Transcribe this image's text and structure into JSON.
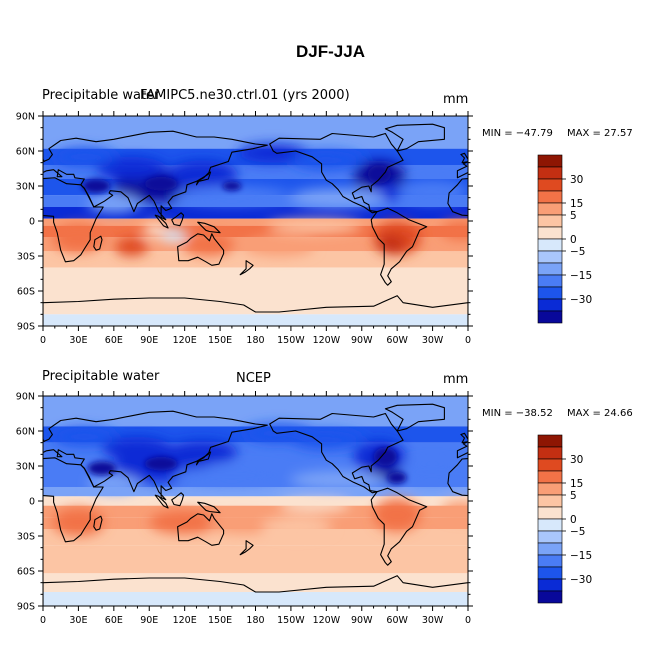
{
  "figure": {
    "title": "DJF-JJA"
  },
  "colors": {
    "levels": [
      "#08089a",
      "#0a2bd6",
      "#1d55ec",
      "#4a7cf5",
      "#7aa3f7",
      "#a9c6fb",
      "#d7e8fb",
      "#fbe2cf",
      "#fcc5a4",
      "#f99e76",
      "#f27247",
      "#df4a20",
      "#c32f12",
      "#8e1603"
    ],
    "ocean_bg": "#f4a585",
    "land_line": "#000000"
  },
  "chart_data": [
    {
      "type": "heatmap",
      "panel_label_left": "Precipitable water",
      "panel_label_center": "FAMIPC5.ne30.ctrl.01 (yrs 2000)",
      "units": "mm",
      "min_text": "MIN = −47.79",
      "max_text": "MAX =  27.57",
      "min": -47.79,
      "max": 27.57,
      "x_ticks": [
        "0",
        "30E",
        "60E",
        "90E",
        "120E",
        "150E",
        "180",
        "150W",
        "120W",
        "90W",
        "60W",
        "30W",
        "0"
      ],
      "y_ticks": [
        "90N",
        "60N",
        "30N",
        "0",
        "30S",
        "60S",
        "90S"
      ],
      "xlim": [
        0,
        360
      ],
      "ylim": [
        -90,
        90
      ],
      "colorbar_labels": [
        "30",
        "15",
        "5",
        "0",
        "−5",
        "−15",
        "−30"
      ]
    },
    {
      "type": "heatmap",
      "panel_label_left": "Precipitable water",
      "panel_label_center": "NCEP",
      "units": "mm",
      "min_text": "MIN = −38.52",
      "max_text": "MAX =  24.66",
      "min": -38.52,
      "max": 24.66,
      "x_ticks": [
        "0",
        "30E",
        "60E",
        "90E",
        "120E",
        "150E",
        "180",
        "150W",
        "120W",
        "90W",
        "60W",
        "30W",
        "0"
      ],
      "y_ticks": [
        "90N",
        "60N",
        "30N",
        "0",
        "30S",
        "60S",
        "90S"
      ],
      "xlim": [
        0,
        360
      ],
      "ylim": [
        -90,
        90
      ],
      "colorbar_labels": [
        "30",
        "15",
        "5",
        "0",
        "−5",
        "−15",
        "−30"
      ]
    }
  ]
}
